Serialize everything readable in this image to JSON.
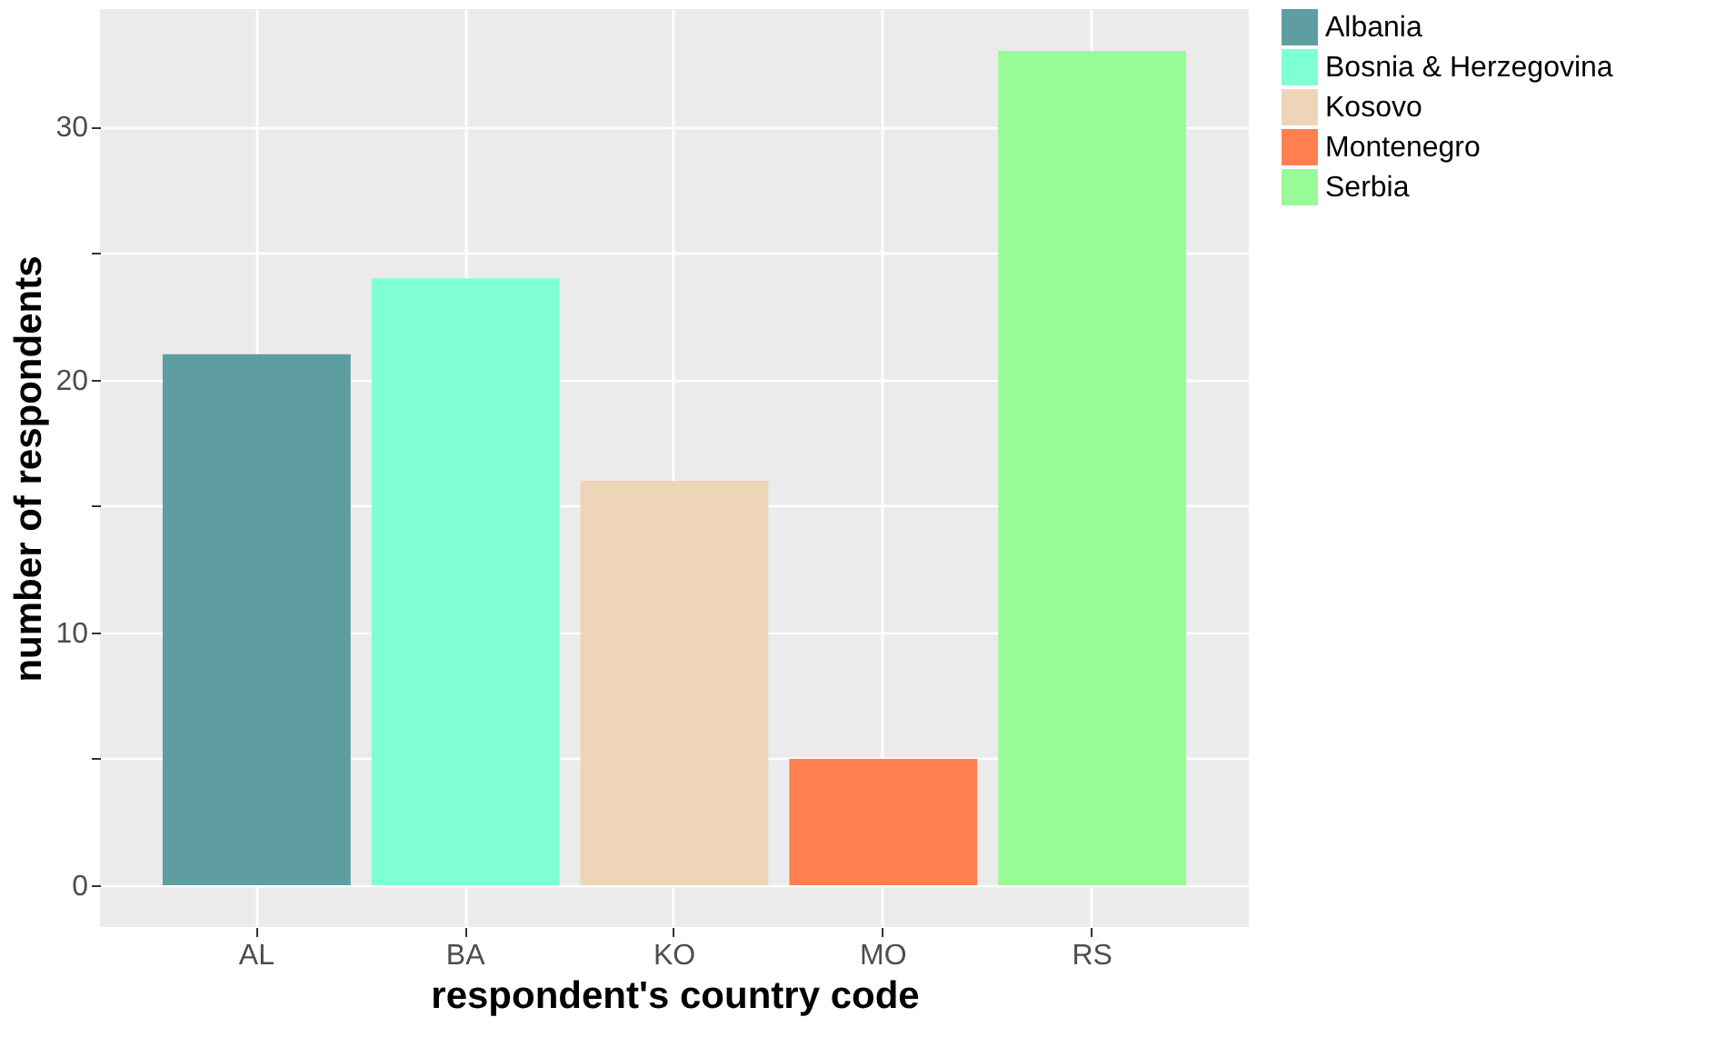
{
  "chart_data": {
    "type": "bar",
    "xlabel": "respondent's country code",
    "ylabel": "number of respondents",
    "categories": [
      "AL",
      "BA",
      "KO",
      "MO",
      "RS"
    ],
    "series": [
      {
        "name": "Albania",
        "color": "#5f9ea0",
        "values": [
          21,
          null,
          null,
          null,
          null
        ]
      },
      {
        "name": "Bosnia & Herzegovina",
        "color": "#7fffd4",
        "values": [
          null,
          24,
          null,
          null,
          null
        ]
      },
      {
        "name": "Kosovo",
        "color": "#eed5b7",
        "values": [
          null,
          null,
          16,
          null,
          null
        ]
      },
      {
        "name": "Montenegro",
        "color": "#ff7f50",
        "values": [
          null,
          null,
          null,
          5,
          null
        ]
      },
      {
        "name": "Serbia",
        "color": "#98fb98",
        "values": [
          null,
          null,
          null,
          null,
          33
        ]
      }
    ],
    "ylim": [
      -1.65,
      34.65
    ],
    "yticks": [
      0,
      {
        "value": 5,
        "label": null
      },
      10,
      {
        "value": 15,
        "label": null
      },
      20,
      {
        "value": 25,
        "label": null
      },
      30
    ],
    "grid": true,
    "legend": "right"
  }
}
